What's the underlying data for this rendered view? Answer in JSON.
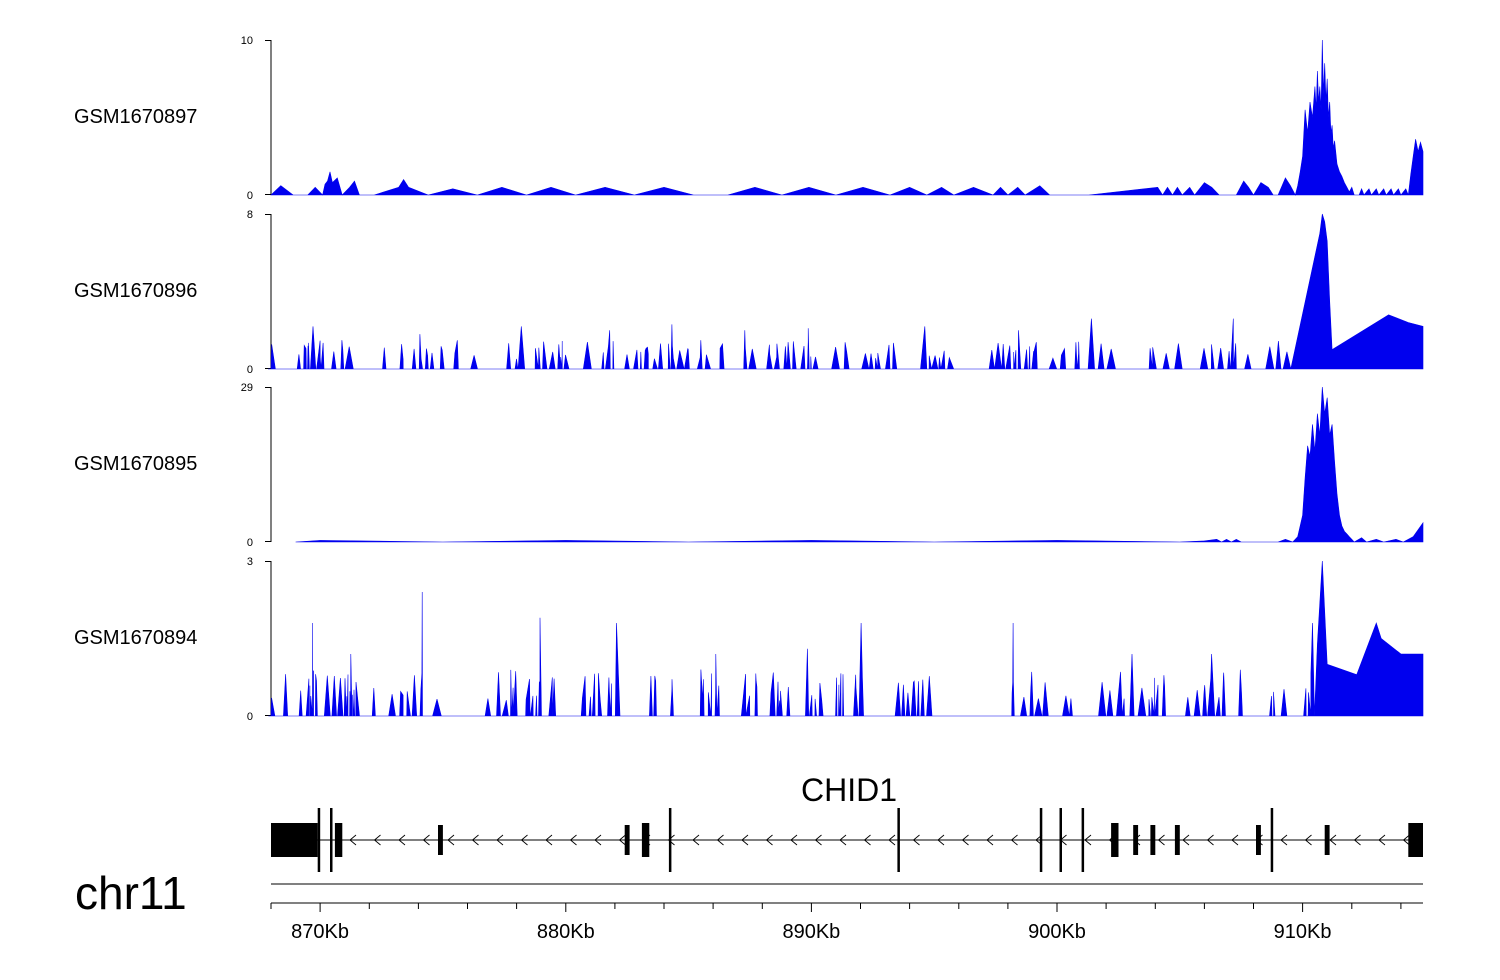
{
  "chart_data": {
    "type": "area",
    "region": {
      "chromosome": "chr11",
      "start_bp": 868000,
      "end_bp": 914900
    },
    "axis_ticks": [
      "870Kb",
      "880Kb",
      "890Kb",
      "900Kb",
      "910Kb"
    ],
    "axis_tick_positions_bp": [
      870000,
      880000,
      890000,
      900000,
      910000
    ],
    "fill_color": "#0000ee",
    "tracks": [
      {
        "name": "GSM1670897",
        "ymin_label": "0",
        "ymax_label": "10",
        "ylim": [
          0,
          10
        ],
        "points": [
          [
            868000,
            0
          ],
          [
            868400,
            0.6
          ],
          [
            868900,
            0
          ],
          [
            869500,
            0
          ],
          [
            869800,
            0.5
          ],
          [
            870100,
            0
          ],
          [
            870200,
            0.7
          ],
          [
            870300,
            0.9
          ],
          [
            870400,
            1.5
          ],
          [
            870500,
            0.8
          ],
          [
            870700,
            1.1
          ],
          [
            870900,
            0
          ],
          [
            871200,
            0.5
          ],
          [
            871400,
            0.9
          ],
          [
            871600,
            0
          ],
          [
            872200,
            0
          ],
          [
            873200,
            0.5
          ],
          [
            873400,
            1.0
          ],
          [
            873600,
            0.5
          ],
          [
            874400,
            0
          ],
          [
            875400,
            0.4
          ],
          [
            876400,
            0
          ],
          [
            877400,
            0.5
          ],
          [
            878400,
            0
          ],
          [
            879400,
            0.5
          ],
          [
            880400,
            0
          ],
          [
            881600,
            0.5
          ],
          [
            882800,
            0
          ],
          [
            884000,
            0.5
          ],
          [
            885200,
            0
          ],
          [
            886600,
            0
          ],
          [
            887700,
            0.5
          ],
          [
            888800,
            0
          ],
          [
            889900,
            0.5
          ],
          [
            891000,
            0
          ],
          [
            892100,
            0.5
          ],
          [
            893200,
            0
          ],
          [
            894000,
            0.5
          ],
          [
            894700,
            0
          ],
          [
            895300,
            0.5
          ],
          [
            895800,
            0
          ],
          [
            896600,
            0.5
          ],
          [
            897400,
            0
          ],
          [
            897700,
            0.5
          ],
          [
            898000,
            0
          ],
          [
            898400,
            0.5
          ],
          [
            898700,
            0
          ],
          [
            899300,
            0.6
          ],
          [
            899700,
            0
          ],
          [
            901300,
            0
          ],
          [
            904100,
            0.5
          ],
          [
            904300,
            0
          ],
          [
            904500,
            0.5
          ],
          [
            904700,
            0
          ],
          [
            904900,
            0.5
          ],
          [
            905100,
            0
          ],
          [
            905400,
            0.5
          ],
          [
            905600,
            0
          ],
          [
            906000,
            0.8
          ],
          [
            906300,
            0.5
          ],
          [
            906600,
            0
          ],
          [
            907300,
            0
          ],
          [
            907600,
            0.9
          ],
          [
            907800,
            0.5
          ],
          [
            908000,
            0
          ],
          [
            908300,
            0.8
          ],
          [
            908600,
            0.5
          ],
          [
            908800,
            0
          ],
          [
            909000,
            0
          ],
          [
            909300,
            1.1
          ],
          [
            909500,
            0.6
          ],
          [
            909700,
            0
          ],
          [
            909800,
            0.6
          ],
          [
            909900,
            1.5
          ],
          [
            910000,
            2.5
          ],
          [
            910100,
            5.5
          ],
          [
            910200,
            4.0
          ],
          [
            910300,
            6.0
          ],
          [
            910400,
            5.0
          ],
          [
            910500,
            7.0
          ],
          [
            910550,
            5.5
          ],
          [
            910600,
            8.0
          ],
          [
            910650,
            6.0
          ],
          [
            910700,
            7.0
          ],
          [
            910750,
            5.5
          ],
          [
            910800,
            10.0
          ],
          [
            910850,
            6.5
          ],
          [
            910900,
            8.5
          ],
          [
            910950,
            6.0
          ],
          [
            911000,
            7.5
          ],
          [
            911050,
            5.0
          ],
          [
            911100,
            6.0
          ],
          [
            911150,
            4.0
          ],
          [
            911200,
            4.5
          ],
          [
            911250,
            3.0
          ],
          [
            911300,
            3.5
          ],
          [
            911400,
            2.0
          ],
          [
            911500,
            1.5
          ],
          [
            911600,
            1.2
          ],
          [
            911700,
            0.8
          ],
          [
            911800,
            0.5
          ],
          [
            911900,
            0.2
          ],
          [
            912000,
            0.5
          ],
          [
            912100,
            0
          ],
          [
            912300,
            0
          ],
          [
            912400,
            0.4
          ],
          [
            912500,
            0
          ],
          [
            912700,
            0.4
          ],
          [
            912800,
            0
          ],
          [
            913000,
            0.4
          ],
          [
            913100,
            0
          ],
          [
            913300,
            0.4
          ],
          [
            913400,
            0
          ],
          [
            913600,
            0.4
          ],
          [
            913700,
            0
          ],
          [
            913900,
            0.4
          ],
          [
            914000,
            0
          ],
          [
            914200,
            0.4
          ],
          [
            914300,
            0
          ],
          [
            914400,
            1.3
          ],
          [
            914500,
            2.5
          ],
          [
            914600,
            3.6
          ],
          [
            914700,
            2.8
          ],
          [
            914800,
            3.4
          ],
          [
            914900,
            2.8
          ]
        ]
      },
      {
        "name": "GSM1670896",
        "ymin_label": "0",
        "ymax_label": "8",
        "ylim": [
          0,
          8
        ],
        "spike_seed": 11,
        "spike_count": 150,
        "spike_range": [
          868000,
          910400
        ],
        "spike_typical_height": [
          0.5,
          1.5
        ],
        "spike_tall_heights": [
          2.2,
          1.8,
          2.2,
          2.0,
          2.3,
          2.0,
          2.1,
          2.2,
          2.0,
          2.6,
          2.6
        ],
        "gaps": [
          [
            871600,
            872400
          ],
          [
            876300,
            877100
          ],
          [
            893500,
            894400
          ],
          [
            896000,
            897200
          ],
          [
            902800,
            903600
          ],
          [
            909600,
            910200
          ]
        ],
        "peaks": [
          [
            910700,
            7.0
          ],
          [
            910800,
            8.0
          ],
          [
            910900,
            7.6
          ],
          [
            911000,
            6.6
          ],
          [
            911100,
            3.5
          ],
          [
            911200,
            1.0
          ],
          [
            913500,
            2.8
          ],
          [
            914300,
            2.4
          ],
          [
            914900,
            2.2
          ]
        ]
      },
      {
        "name": "GSM1670895",
        "ymin_label": "0",
        "ymax_label": "29",
        "ylim": [
          0,
          29
        ],
        "points": [
          [
            869000,
            0
          ],
          [
            870000,
            0.3
          ],
          [
            875000,
            0
          ],
          [
            880000,
            0.3
          ],
          [
            885000,
            0
          ],
          [
            890000,
            0.3
          ],
          [
            895000,
            0
          ],
          [
            900000,
            0.3
          ],
          [
            905000,
            0
          ],
          [
            906000,
            0.2
          ],
          [
            906500,
            0.5
          ],
          [
            906700,
            0
          ],
          [
            906900,
            0.5
          ],
          [
            907100,
            0
          ],
          [
            907300,
            0.5
          ],
          [
            907500,
            0
          ],
          [
            909000,
            0
          ],
          [
            909300,
            0.5
          ],
          [
            909600,
            0
          ],
          [
            909800,
            1.0
          ],
          [
            910000,
            5.0
          ],
          [
            910100,
            12.0
          ],
          [
            910200,
            18.0
          ],
          [
            910300,
            16.0
          ],
          [
            910400,
            22.0
          ],
          [
            910500,
            17.0
          ],
          [
            910600,
            24.0
          ],
          [
            910700,
            20.0
          ],
          [
            910800,
            29.0
          ],
          [
            910900,
            24.0
          ],
          [
            911000,
            27.0
          ],
          [
            911100,
            20.0
          ],
          [
            911200,
            22.0
          ],
          [
            911300,
            15.0
          ],
          [
            911400,
            9.0
          ],
          [
            911500,
            5.0
          ],
          [
            911600,
            3.0
          ],
          [
            911700,
            2.0
          ],
          [
            911800,
            1.5
          ],
          [
            911900,
            1.0
          ],
          [
            912000,
            0.5
          ],
          [
            912100,
            0
          ],
          [
            912400,
            0.8
          ],
          [
            912600,
            0
          ],
          [
            913000,
            0.5
          ],
          [
            913300,
            0
          ],
          [
            913800,
            0.5
          ],
          [
            914100,
            0
          ],
          [
            914500,
            1.0
          ],
          [
            914900,
            3.6
          ]
        ]
      },
      {
        "name": "GSM1670894",
        "ymin_label": "0",
        "ymax_label": "3",
        "ylim": [
          0,
          3
        ],
        "spike_seed": 23,
        "spike_count": 170,
        "spike_range": [
          868000,
          910400
        ],
        "spike_typical_height": [
          0.3,
          0.9
        ],
        "spike_tall_heights": [
          1.8,
          1.2,
          2.4,
          1.9,
          1.8,
          1.2,
          1.3,
          1.8,
          1.8,
          1.2,
          1.2
        ],
        "gaps": [
          [
            875200,
            876000
          ],
          [
            884600,
            885300
          ],
          [
            892300,
            893200
          ],
          [
            894900,
            895800
          ],
          [
            895800,
            896700
          ],
          [
            896700,
            898100
          ],
          [
            900600,
            901300
          ],
          [
            907600,
            908400
          ]
        ],
        "peaks": [
          [
            910400,
            1.8
          ],
          [
            910600,
            1.4
          ],
          [
            910800,
            3.0
          ],
          [
            911000,
            1.0
          ],
          [
            912200,
            0.8
          ],
          [
            913000,
            1.8
          ],
          [
            913200,
            1.5
          ],
          [
            914000,
            1.2
          ],
          [
            914500,
            1.2
          ],
          [
            914900,
            1.2
          ]
        ]
      }
    ],
    "gene": {
      "name": "CHID1",
      "strand": "-",
      "exons_bp": [
        [
          868000,
          869900
        ],
        [
          869900,
          870000
        ],
        [
          870400,
          870500
        ],
        [
          870600,
          870900
        ],
        [
          874800,
          875000
        ],
        [
          882400,
          882600
        ],
        [
          883100,
          883400
        ],
        [
          884200,
          884300
        ],
        [
          893500,
          893600
        ],
        [
          899300,
          899400
        ],
        [
          900100,
          900200
        ],
        [
          901000,
          901100
        ],
        [
          902200,
          902500
        ],
        [
          903100,
          903300
        ],
        [
          903800,
          904000
        ],
        [
          904800,
          905000
        ],
        [
          908100,
          908300
        ],
        [
          908700,
          908800
        ],
        [
          910900,
          911100
        ],
        [
          914300,
          914900
        ]
      ]
    },
    "chromosome_label": "chr11"
  }
}
